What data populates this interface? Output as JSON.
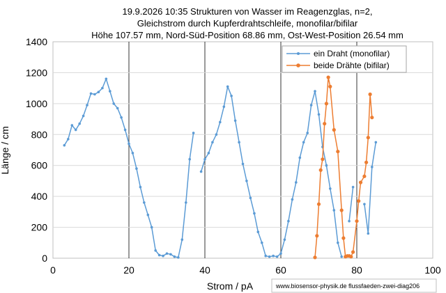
{
  "chart_data": {
    "type": "line",
    "title_lines": [
      "19.9.2026 10:35 Strukturen von Wasser im Reagenzglas, n=2,",
      "Gleichstrom durch Kupferdrahtschleife, monofilar/bifilar",
      "Höhe 107.57 mm, Nord-Süd-Position 68.86 mm, Ost-West-Position 26.54 mm"
    ],
    "xlabel": "Strom / pA",
    "ylabel": "Länge / cm",
    "xlim": [
      0,
      100
    ],
    "ylim": [
      0,
      1400
    ],
    "xticks": [
      "0",
      "20",
      "40",
      "60",
      "80",
      "100"
    ],
    "yticks": [
      "0",
      "200",
      "400",
      "600",
      "800",
      "1000",
      "1200",
      "1400"
    ],
    "grid": "major x and y",
    "legend_position": "top-right",
    "source_note": "www.biosensor-physik.de  flussfaeden-zwei-diag206",
    "series": [
      {
        "name": "ein Draht (monofilar)",
        "color": "#5b9bd5",
        "marker": "small-dot",
        "segments": [
          [
            [
              3,
              730
            ],
            [
              4,
              770
            ],
            [
              5,
              860
            ],
            [
              6,
              830
            ],
            [
              7,
              870
            ],
            [
              8,
              920
            ],
            [
              9,
              990
            ],
            [
              10,
              1065
            ],
            [
              11,
              1060
            ],
            [
              12,
              1075
            ],
            [
              13,
              1100
            ],
            [
              14,
              1160
            ],
            [
              15,
              1080
            ],
            [
              16,
              1000
            ],
            [
              17,
              970
            ],
            [
              18,
              910
            ],
            [
              19,
              830
            ],
            [
              20,
              740
            ],
            [
              21,
              680
            ],
            [
              22,
              580
            ],
            [
              23,
              460
            ],
            [
              24,
              360
            ],
            [
              25,
              280
            ],
            [
              26,
              200
            ],
            [
              27,
              50
            ],
            [
              28,
              20
            ],
            [
              29,
              15
            ],
            [
              30,
              30
            ],
            [
              31,
              25
            ],
            [
              32,
              10
            ],
            [
              33,
              5
            ],
            [
              34,
              120
            ],
            [
              35,
              360
            ],
            [
              36,
              640
            ],
            [
              37,
              810
            ]
          ],
          [
            [
              39,
              560
            ],
            [
              40,
              640
            ],
            [
              41,
              680
            ],
            [
              42,
              750
            ],
            [
              43,
              800
            ],
            [
              44,
              880
            ],
            [
              45,
              980
            ],
            [
              46,
              1110
            ],
            [
              47,
              1050
            ],
            [
              48,
              890
            ],
            [
              49,
              750
            ],
            [
              50,
              610
            ],
            [
              51,
              500
            ],
            [
              52,
              390
            ],
            [
              53,
              290
            ],
            [
              54,
              170
            ],
            [
              55,
              100
            ],
            [
              56,
              15
            ],
            [
              57,
              10
            ],
            [
              58,
              15
            ],
            [
              59,
              10
            ],
            [
              60,
              30
            ],
            [
              61,
              120
            ],
            [
              62,
              240
            ],
            [
              63,
              380
            ],
            [
              64,
              490
            ],
            [
              65,
              650
            ],
            [
              66,
              750
            ],
            [
              67,
              810
            ],
            [
              68,
              990
            ],
            [
              69,
              1080
            ],
            [
              70,
              930
            ],
            [
              71,
              720
            ],
            [
              72,
              600
            ],
            [
              73,
              450
            ],
            [
              74,
              310
            ],
            [
              75,
              100
            ],
            [
              76,
              10
            ]
          ],
          [
            [
              78,
              240
            ],
            [
              79,
              460
            ]
          ],
          [
            [
              82,
              350
            ],
            [
              83,
              160
            ],
            [
              84,
              590
            ],
            [
              85,
              750
            ]
          ]
        ]
      },
      {
        "name": "beide Drähte (bifilar)",
        "color": "#ed7d31",
        "marker": "dot",
        "segments": [
          [
            [
              69,
              5
            ],
            [
              69.5,
              145
            ],
            [
              70,
              350
            ],
            [
              70.5,
              570
            ],
            [
              71,
              640
            ],
            [
              71.5,
              870
            ],
            [
              72,
              1000
            ],
            [
              72.5,
              1170
            ],
            [
              73,
              1110
            ],
            [
              74,
              830
            ],
            [
              75,
              690
            ],
            [
              76,
              310
            ],
            [
              76.5,
              130
            ],
            [
              77,
              10
            ],
            [
              77.5,
              15
            ],
            [
              78,
              15
            ],
            [
              78.5,
              10
            ],
            [
              79,
              40
            ],
            [
              80,
              240
            ],
            [
              80.5,
              370
            ],
            [
              81,
              490
            ],
            [
              82,
              530
            ],
            [
              82.5,
              620
            ],
            [
              83,
              780
            ],
            [
              83.5,
              1060
            ],
            [
              84,
              910
            ]
          ]
        ]
      }
    ]
  }
}
